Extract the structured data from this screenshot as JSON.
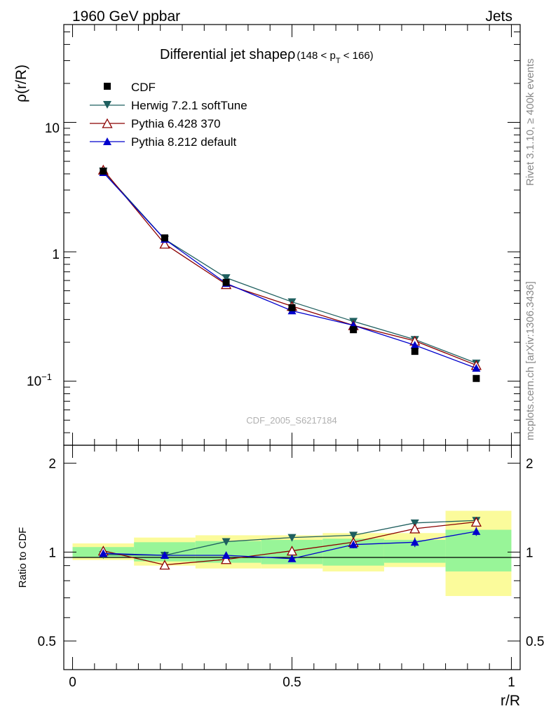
{
  "header": {
    "left": "1960 GeV ppbar",
    "right": "Jets"
  },
  "side_labels": {
    "rivet": "Rivet 3.1.10, ≥ 400k events",
    "mcplots": "mcplots.cern.ch [arXiv:1306.3436]"
  },
  "watermark": "CDF_2005_S6217184",
  "chart_data": [
    {
      "type": "line",
      "title": "Differential jet shapeρ",
      "title_range": {
        "open": "(148 < p",
        "sub": "T",
        "close": " < 166)"
      },
      "ylabel": "ρ(r/R)",
      "yscale": "log",
      "ylim": [
        0.032,
        57
      ],
      "ytick_labels": {
        "ten": "10",
        "one": "1",
        "tenth_base": "10",
        "tenth_exp": "−1"
      },
      "x": [
        0.07,
        0.21,
        0.35,
        0.5,
        0.64,
        0.78,
        0.92
      ],
      "series": [
        {
          "name": "CDF",
          "color": "#000000",
          "marker": "square",
          "line": false,
          "values": [
            4.2,
            1.28,
            0.58,
            0.37,
            0.25,
            0.17,
            0.105
          ]
        },
        {
          "name": "Herwig 7.2.1 softTune",
          "color": "#1f5f5f",
          "marker": "triangle-down",
          "line": true,
          "values": [
            4.2,
            1.25,
            0.63,
            0.41,
            0.29,
            0.21,
            0.138
          ]
        },
        {
          "name": "Pythia 6.428 370",
          "color": "#8b0000",
          "marker": "triangle-up-open",
          "line": true,
          "values": [
            4.3,
            1.15,
            0.56,
            0.38,
            0.27,
            0.205,
            0.133
          ]
        },
        {
          "name": "Pythia 8.212 default",
          "color": "#0000cc",
          "marker": "triangle-up",
          "line": true,
          "values": [
            4.1,
            1.25,
            0.57,
            0.35,
            0.27,
            0.19,
            0.126
          ]
        }
      ]
    },
    {
      "type": "line",
      "ylabel": "Ratio to CDF",
      "xlabel": "r/R",
      "ylim": [
        0.4,
        2.3
      ],
      "xlim": [
        -0.02,
        1.02
      ],
      "x_ticks": [
        0,
        0.5,
        1
      ],
      "x_tick_labels": [
        "0",
        "0.5",
        "1"
      ],
      "y_ticks": [
        0.5,
        1,
        2
      ],
      "y_tick_labels": [
        "0.5",
        "1",
        "2"
      ],
      "x": [
        0.07,
        0.21,
        0.35,
        0.5,
        0.64,
        0.78,
        0.92
      ],
      "bands": {
        "edges": [
          0,
          0.14,
          0.28,
          0.43,
          0.57,
          0.71,
          0.85,
          1.0
        ],
        "inner_low": [
          0.96,
          0.93,
          0.92,
          0.91,
          0.9,
          0.92,
          0.86
        ],
        "inner_high": [
          1.04,
          1.08,
          1.09,
          1.1,
          1.11,
          1.1,
          1.19
        ],
        "outer_low": [
          0.94,
          0.9,
          0.88,
          0.88,
          0.86,
          0.89,
          0.71
        ],
        "outer_high": [
          1.07,
          1.12,
          1.14,
          1.14,
          1.16,
          1.16,
          1.38
        ],
        "inner_color": "#98f598",
        "outer_color": "#fbfb9b"
      },
      "series": [
        {
          "name": "Herwig 7.2.1 softTune",
          "color": "#1f5f5f",
          "marker": "triangle-down",
          "values": [
            0.98,
            0.975,
            1.085,
            1.12,
            1.14,
            1.255,
            1.28
          ],
          "err": [
            0,
            0,
            0,
            0,
            0,
            0.02,
            0.02
          ]
        },
        {
          "name": "Pythia 6.428 370",
          "color": "#8b0000",
          "marker": "triangle-up-open",
          "values": [
            1.01,
            0.905,
            0.945,
            1.01,
            1.08,
            1.2,
            1.265
          ],
          "err": [
            0,
            0,
            0,
            0,
            0,
            0.02,
            0.02
          ]
        },
        {
          "name": "Pythia 8.212 default",
          "color": "#0000cc",
          "marker": "triangle-up",
          "values": [
            0.99,
            0.975,
            0.975,
            0.95,
            1.06,
            1.08,
            1.175
          ],
          "err": [
            0.01,
            0.01,
            0.01,
            0.01,
            0.03,
            0.04,
            0.04
          ]
        }
      ]
    }
  ]
}
